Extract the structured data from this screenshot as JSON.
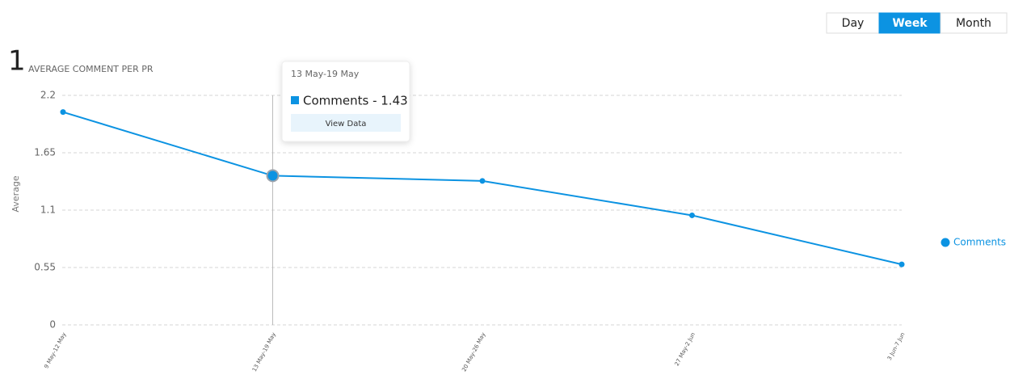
{
  "header": {
    "value": "1",
    "label": "AVERAGE COMMENT PER PR"
  },
  "periods": {
    "options": [
      "Day",
      "Week",
      "Month"
    ],
    "active": "Week"
  },
  "tooltip": {
    "title": "13 May-19 May",
    "label": "Comments - 1.43",
    "action": "View Data"
  },
  "chart_data": {
    "type": "line",
    "y_label": "Average",
    "categories": [
      "9 May-12 May",
      "13 May-19 May",
      "20 May-26 May",
      "27 May-2 Jun",
      "3 Jun-7 Jun"
    ],
    "series": [
      {
        "name": "Comments",
        "color": "#0c93e2",
        "values": [
          2.04,
          1.43,
          1.38,
          1.05,
          0.58
        ]
      }
    ],
    "ylim": [
      0,
      2.2
    ],
    "yticks": [
      0,
      0.55,
      1.1,
      1.65,
      2.2
    ],
    "grid": true,
    "legend": "right",
    "highlight": 1
  }
}
